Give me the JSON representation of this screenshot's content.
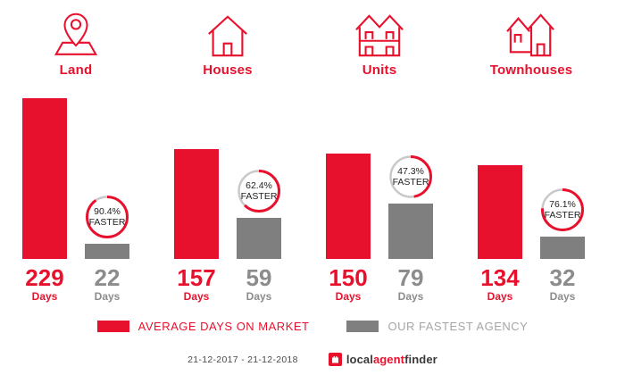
{
  "colors": {
    "brand_red": "#e8112d",
    "bar_gray": "#7f7f7f",
    "number_gray": "#8c8c8c",
    "legend_gray": "#a6a6a6",
    "ring_gray": "#c9c9c9",
    "badge_text": "#222222",
    "date_gray": "#4a4a4a",
    "logo_dark": "#3a3a3a"
  },
  "groups": [
    {
      "label": "Land",
      "icon": "map-pin-icon",
      "avg_days": 229,
      "agency_days": 22,
      "unit": "Days",
      "faster_value": "90.4%",
      "faster_word": "FASTER",
      "pct": 90.4
    },
    {
      "label": "Houses",
      "icon": "house-icon",
      "avg_days": 157,
      "agency_days": 59,
      "unit": "Days",
      "faster_value": "62.4%",
      "faster_word": "FASTER",
      "pct": 62.4
    },
    {
      "label": "Units",
      "icon": "units-icon",
      "avg_days": 150,
      "agency_days": 79,
      "unit": "Days",
      "faster_value": "47.3%",
      "faster_word": "FASTER",
      "pct": 47.3
    },
    {
      "label": "Townhouses",
      "icon": "townhouses-icon",
      "avg_days": 134,
      "agency_days": 32,
      "unit": "Days",
      "faster_value": "76.1%",
      "faster_word": "FASTER",
      "pct": 76.1
    }
  ],
  "legend": {
    "avg_label": "AVERAGE DAYS ON MARKET",
    "agency_label": "OUR FASTEST AGENCY"
  },
  "footer": {
    "date_range": "21-12-2017 - 21-12-2018",
    "logo_local": "local",
    "logo_agent": "agent",
    "logo_finder": "finder"
  },
  "chart_data": {
    "type": "bar",
    "categories": [
      "Land",
      "Houses",
      "Units",
      "Townhouses"
    ],
    "series": [
      {
        "name": "AVERAGE DAYS ON MARKET",
        "values": [
          229,
          157,
          150,
          134
        ],
        "color": "#e8112d"
      },
      {
        "name": "OUR FASTEST AGENCY",
        "values": [
          22,
          59,
          79,
          32
        ],
        "color": "#7f7f7f"
      }
    ],
    "annotations": [
      "90.4% FASTER",
      "62.4% FASTER",
      "47.3% FASTER",
      "76.1% FASTER"
    ],
    "unit": "Days",
    "title": "",
    "xlabel": "",
    "ylabel": "",
    "ylim": [
      0,
      229
    ],
    "grid": false,
    "legend_position": "bottom",
    "footnote": "21-12-2017 - 21-12-2018"
  }
}
